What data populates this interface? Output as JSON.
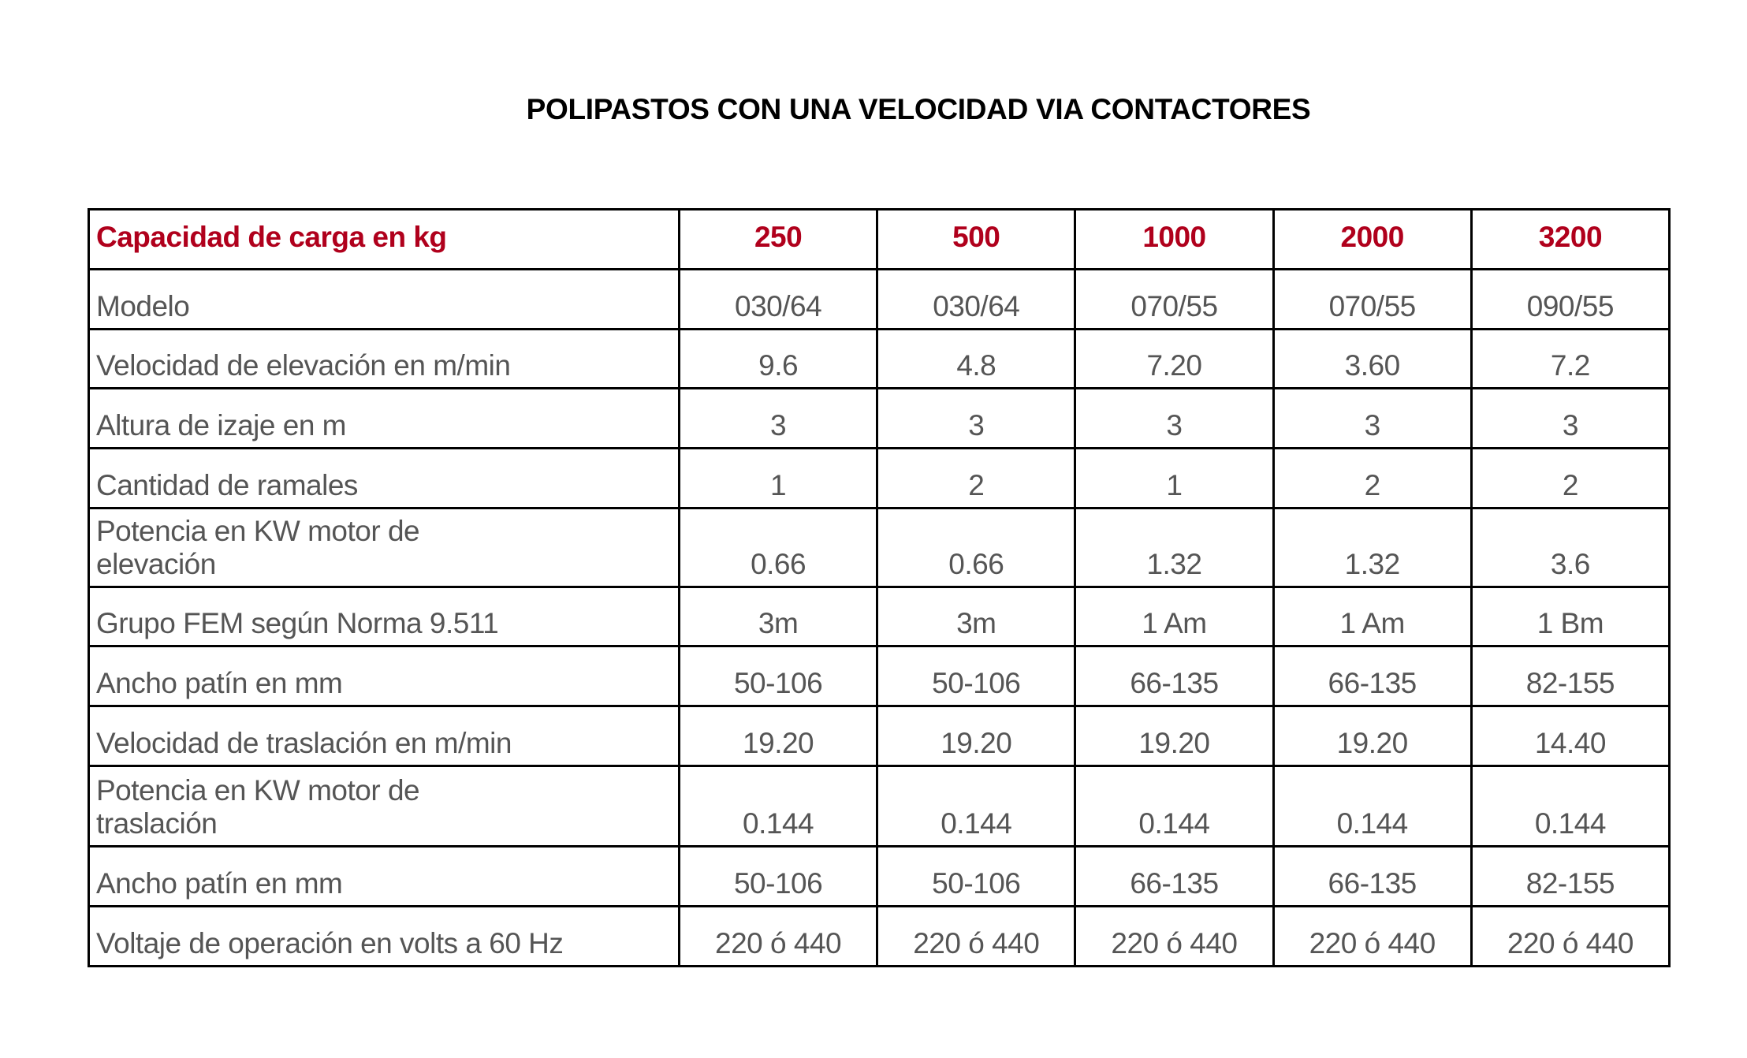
{
  "title": "POLIPASTOS CON UNA VELOCIDAD VIA CONTACTORES",
  "colors": {
    "header_text": "#b0001c",
    "body_text": "#555555",
    "border": "#000000"
  },
  "table": {
    "header": {
      "label": "Capacidad de carga en kg",
      "values": [
        "250",
        "500",
        "1000",
        "2000",
        "3200"
      ]
    },
    "rows": [
      {
        "label": "Modelo",
        "values": [
          "030/64",
          "030/64",
          "070/55",
          "070/55",
          "090/55"
        ]
      },
      {
        "label": "Velocidad de elevación en m/min",
        "values": [
          "9.6",
          "4.8",
          "7.20",
          "3.60",
          "7.2"
        ]
      },
      {
        "label": "Altura de izaje en m",
        "values": [
          "3",
          "3",
          "3",
          "3",
          "3"
        ]
      },
      {
        "label": "Cantidad de ramales",
        "values": [
          "1",
          "2",
          "1",
          "2",
          "2"
        ]
      },
      {
        "label": "Potencia en KW motor de elevación",
        "values": [
          "0.66",
          "0.66",
          "1.32",
          "1.32",
          "3.6"
        ]
      },
      {
        "label": "Grupo FEM según Norma 9.511",
        "values": [
          "3m",
          "3m",
          "1 Am",
          "1 Am",
          "1 Bm"
        ]
      },
      {
        "label": "Ancho patín en mm",
        "values": [
          "50-106",
          "50-106",
          "66-135",
          "66-135",
          "82-155"
        ]
      },
      {
        "label": "Velocidad de traslación en m/min",
        "values": [
          "19.20",
          "19.20",
          "19.20",
          "19.20",
          "14.40"
        ]
      },
      {
        "label": "Potencia en KW motor de traslación",
        "values": [
          "0.144",
          "0.144",
          "0.144",
          "0.144",
          "0.144"
        ]
      },
      {
        "label": "Ancho patín en mm",
        "values": [
          "50-106",
          "50-106",
          "66-135",
          "66-135",
          "82-155"
        ]
      },
      {
        "label": "Voltaje de operación en volts a 60 Hz",
        "values": [
          "220 ó 440",
          "220 ó 440",
          "220 ó 440",
          "220 ó 440",
          "220 ó 440"
        ]
      }
    ]
  }
}
